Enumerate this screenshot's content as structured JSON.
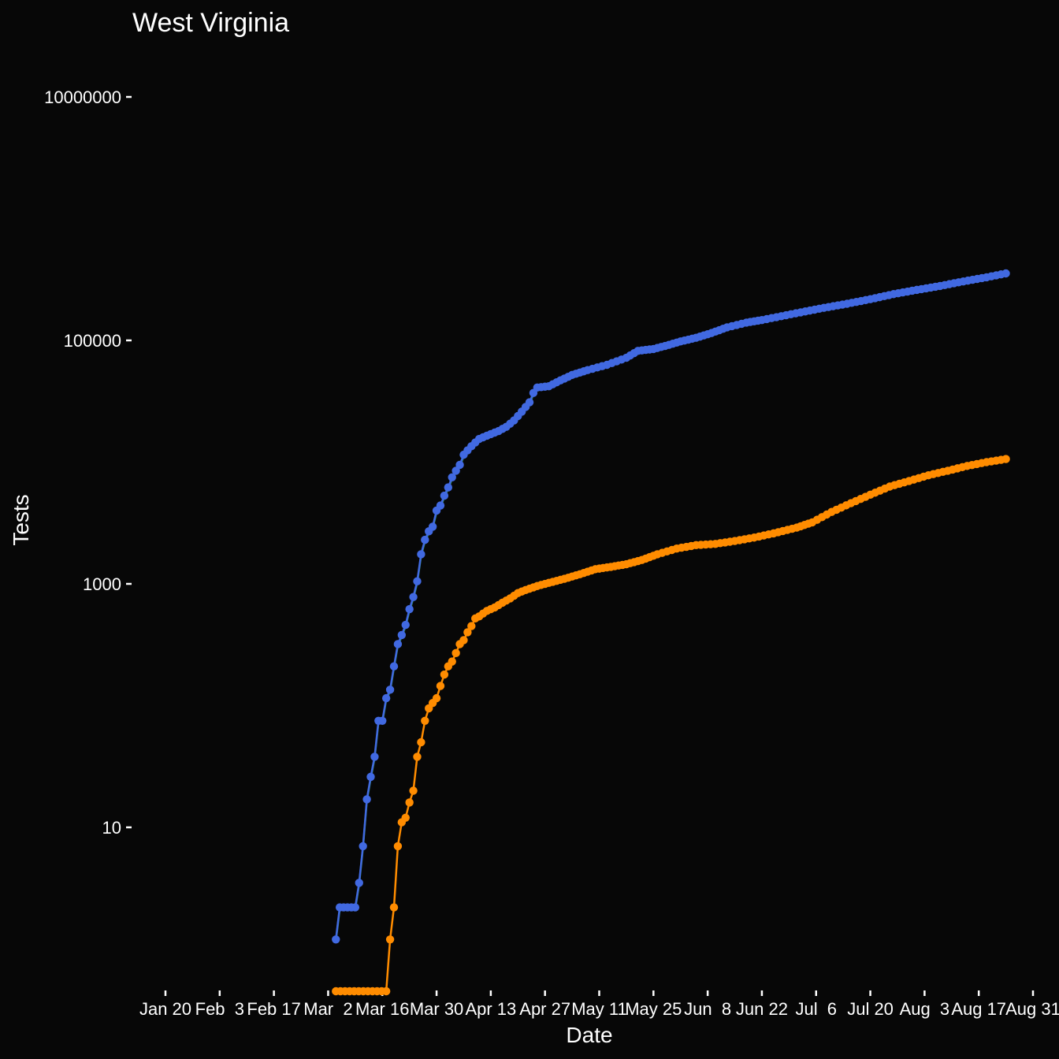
{
  "chart_data": {
    "type": "line",
    "title": "West Virginia",
    "xlabel": "Date",
    "ylabel": "Tests",
    "y_scale": "log10",
    "x_ticks": [
      "Jan 20",
      "Feb  3",
      "Feb 17",
      "Mar  2",
      "Mar 16",
      "Mar 30",
      "Apr 13",
      "Apr 27",
      "May 11",
      "May 25",
      "Jun  8",
      "Jun 22",
      "Jul  6",
      "Jul 20",
      "Aug  3",
      "Aug 17",
      "Aug 31"
    ],
    "y_ticks": [
      "10",
      "1000",
      "100000",
      "10000000"
    ],
    "xlim": [
      "2020-01-20",
      "2020-08-31"
    ],
    "grid": false,
    "legend": "none",
    "colors": {
      "background": "#070707",
      "text": "#ffffff",
      "total_tests": "#4169e1",
      "total_tests_under": "#2e8b57",
      "positive": "#ff8c00"
    },
    "series": [
      {
        "color": "#4169e1",
        "points": [
          [
            "2020-03-04",
            1.2
          ],
          [
            "2020-03-05",
            2.2
          ],
          [
            "2020-03-07",
            2.2
          ],
          [
            "2020-03-09",
            2.2
          ],
          [
            "2020-03-10",
            3.5
          ],
          [
            "2020-03-11",
            7
          ],
          [
            "2020-03-12",
            17
          ],
          [
            "2020-03-13",
            26
          ],
          [
            "2020-03-14",
            38
          ],
          [
            "2020-03-15",
            75
          ],
          [
            "2020-03-16",
            75
          ],
          [
            "2020-03-17",
            115
          ],
          [
            "2020-03-18",
            135
          ],
          [
            "2020-03-19",
            210
          ],
          [
            "2020-03-20",
            320
          ],
          [
            "2020-03-21",
            380
          ],
          [
            "2020-03-22",
            460
          ],
          [
            "2020-03-23",
            620
          ],
          [
            "2020-03-24",
            780
          ],
          [
            "2020-03-25",
            1050
          ],
          [
            "2020-03-26",
            1750
          ],
          [
            "2020-03-27",
            2300
          ],
          [
            "2020-03-28",
            2700
          ],
          [
            "2020-03-29",
            2950
          ],
          [
            "2020-03-30",
            4000
          ],
          [
            "2020-03-31",
            4400
          ],
          [
            "2020-04-01",
            5300
          ],
          [
            "2020-04-02",
            6200
          ],
          [
            "2020-04-03",
            7500
          ],
          [
            "2020-04-04",
            8500
          ],
          [
            "2020-04-05",
            9500
          ],
          [
            "2020-04-06",
            11500
          ],
          [
            "2020-04-07",
            12500
          ],
          [
            "2020-04-08",
            13500
          ],
          [
            "2020-04-09",
            14500
          ],
          [
            "2020-04-10",
            15500
          ],
          [
            "2020-04-12",
            16500
          ],
          [
            "2020-04-15",
            18000
          ],
          [
            "2020-04-17",
            19500
          ],
          [
            "2020-04-19",
            22000
          ],
          [
            "2020-04-21",
            26000
          ],
          [
            "2020-04-23",
            31000
          ],
          [
            "2020-04-24",
            37000
          ],
          [
            "2020-04-25",
            41000
          ],
          [
            "2020-04-28",
            42000
          ],
          [
            "2020-05-01",
            47000
          ],
          [
            "2020-05-04",
            52000
          ],
          [
            "2020-05-08",
            57000
          ],
          [
            "2020-05-13",
            63000
          ],
          [
            "2020-05-18",
            72000
          ],
          [
            "2020-05-21",
            82000
          ],
          [
            "2020-05-25",
            85000
          ],
          [
            "2020-05-28",
            90000
          ],
          [
            "2020-06-01",
            98000
          ],
          [
            "2020-06-05",
            105000
          ],
          [
            "2020-06-09",
            115000
          ],
          [
            "2020-06-13",
            128000
          ],
          [
            "2020-06-18",
            140000
          ],
          [
            "2020-06-22",
            147000
          ],
          [
            "2020-06-27",
            158000
          ],
          [
            "2020-07-02",
            170000
          ],
          [
            "2020-07-08",
            185000
          ],
          [
            "2020-07-14",
            200000
          ],
          [
            "2020-07-20",
            218000
          ],
          [
            "2020-07-26",
            240000
          ],
          [
            "2020-08-01",
            260000
          ],
          [
            "2020-08-07",
            280000
          ],
          [
            "2020-08-13",
            305000
          ],
          [
            "2020-08-19",
            330000
          ],
          [
            "2020-08-24",
            355000
          ]
        ]
      },
      {
        "color": "#ff8c00",
        "points": [
          [
            "2020-03-04",
            0.5
          ],
          [
            "2020-03-17",
            0.5
          ],
          [
            "2020-03-18",
            1.2
          ],
          [
            "2020-03-19",
            2.2
          ],
          [
            "2020-03-20",
            7
          ],
          [
            "2020-03-21",
            11
          ],
          [
            "2020-03-22",
            12
          ],
          [
            "2020-03-23",
            16
          ],
          [
            "2020-03-24",
            20
          ],
          [
            "2020-03-25",
            38
          ],
          [
            "2020-03-26",
            50
          ],
          [
            "2020-03-27",
            75
          ],
          [
            "2020-03-28",
            95
          ],
          [
            "2020-03-29",
            105
          ],
          [
            "2020-03-30",
            115
          ],
          [
            "2020-03-31",
            145
          ],
          [
            "2020-04-01",
            180
          ],
          [
            "2020-04-02",
            210
          ],
          [
            "2020-04-03",
            230
          ],
          [
            "2020-04-04",
            270
          ],
          [
            "2020-04-05",
            320
          ],
          [
            "2020-04-06",
            345
          ],
          [
            "2020-04-07",
            400
          ],
          [
            "2020-04-08",
            450
          ],
          [
            "2020-04-09",
            520
          ],
          [
            "2020-04-10",
            540
          ],
          [
            "2020-04-11",
            570
          ],
          [
            "2020-04-12",
            600
          ],
          [
            "2020-04-13",
            620
          ],
          [
            "2020-04-14",
            640
          ],
          [
            "2020-04-16",
            700
          ],
          [
            "2020-04-18",
            760
          ],
          [
            "2020-04-20",
            840
          ],
          [
            "2020-04-22",
            890
          ],
          [
            "2020-04-25",
            960
          ],
          [
            "2020-04-28",
            1020
          ],
          [
            "2020-05-02",
            1100
          ],
          [
            "2020-05-06",
            1200
          ],
          [
            "2020-05-10",
            1320
          ],
          [
            "2020-05-14",
            1380
          ],
          [
            "2020-05-18",
            1450
          ],
          [
            "2020-05-22",
            1570
          ],
          [
            "2020-05-26",
            1750
          ],
          [
            "2020-05-31",
            1950
          ],
          [
            "2020-06-05",
            2080
          ],
          [
            "2020-06-10",
            2130
          ],
          [
            "2020-06-15",
            2250
          ],
          [
            "2020-06-20",
            2400
          ],
          [
            "2020-06-25",
            2600
          ],
          [
            "2020-07-01",
            2900
          ],
          [
            "2020-07-05",
            3200
          ],
          [
            "2020-07-10",
            3900
          ],
          [
            "2020-07-15",
            4600
          ],
          [
            "2020-07-20",
            5400
          ],
          [
            "2020-07-25",
            6300
          ],
          [
            "2020-07-30",
            7000
          ],
          [
            "2020-08-04",
            7800
          ],
          [
            "2020-08-09",
            8500
          ],
          [
            "2020-08-14",
            9300
          ],
          [
            "2020-08-19",
            10000
          ],
          [
            "2020-08-24",
            10600
          ]
        ]
      }
    ]
  }
}
